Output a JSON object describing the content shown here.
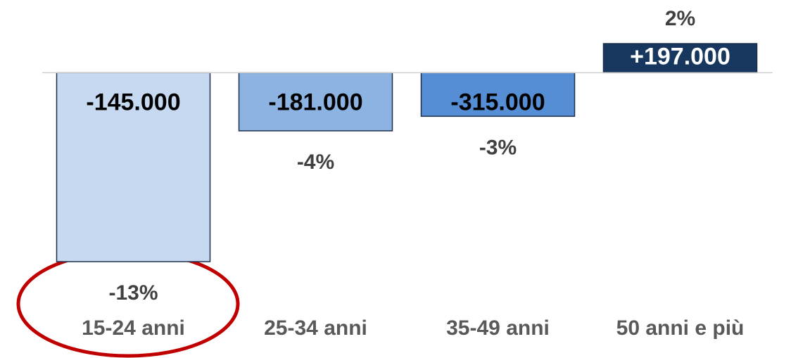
{
  "chart_data": {
    "type": "bar",
    "categories": [
      "15-24 anni",
      "25-34 anni",
      "35-49 anni",
      "50 anni e più"
    ],
    "values": [
      -13,
      -4,
      -3,
      2
    ],
    "value_labels": [
      "-13%",
      "-4%",
      "-3%",
      "2%"
    ],
    "counts": [
      -145000,
      -181000,
      -315000,
      197000
    ],
    "count_labels": [
      "-145.000",
      "-181.000",
      "-315.000",
      "+197.000"
    ],
    "colors": [
      "#c6d9f1",
      "#8db3e2",
      "#558ed5",
      "#17375e"
    ]
  }
}
